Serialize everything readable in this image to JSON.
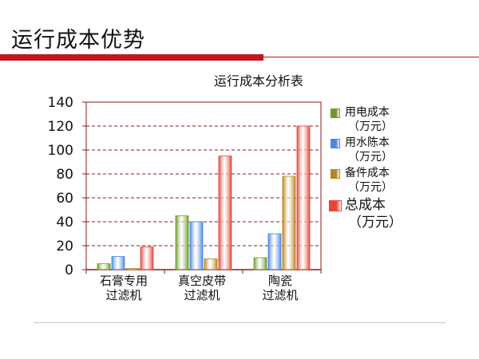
{
  "slide": {
    "title": "运行成本优势"
  },
  "chart_data": {
    "type": "bar",
    "title": "运行成本分析表",
    "categories": [
      {
        "line1": "石膏专用",
        "line2": "过滤机"
      },
      {
        "line1": "真空皮带",
        "line2": "过滤机"
      },
      {
        "line1": "陶瓷",
        "line2": "过滤机"
      }
    ],
    "series": [
      {
        "name": "用电成本",
        "unit": "（万元）",
        "color": "#6f9a2a",
        "values": [
          5,
          45,
          10
        ]
      },
      {
        "name": "用水陈本",
        "unit": "（万元）",
        "color": "#4b86e4",
        "values": [
          11,
          40,
          30
        ]
      },
      {
        "name": "备件成本",
        "unit": "（万元）",
        "color": "#b7861e",
        "values": [
          1,
          9,
          78
        ]
      },
      {
        "name": "总成本",
        "unit": "（万元）",
        "color": "#e8453a",
        "values": [
          19,
          95,
          120
        ]
      }
    ],
    "ylim": [
      0,
      140
    ],
    "yticks": [
      0,
      20,
      40,
      60,
      80,
      100,
      120,
      140
    ],
    "grid": true,
    "legend_position": "right"
  }
}
